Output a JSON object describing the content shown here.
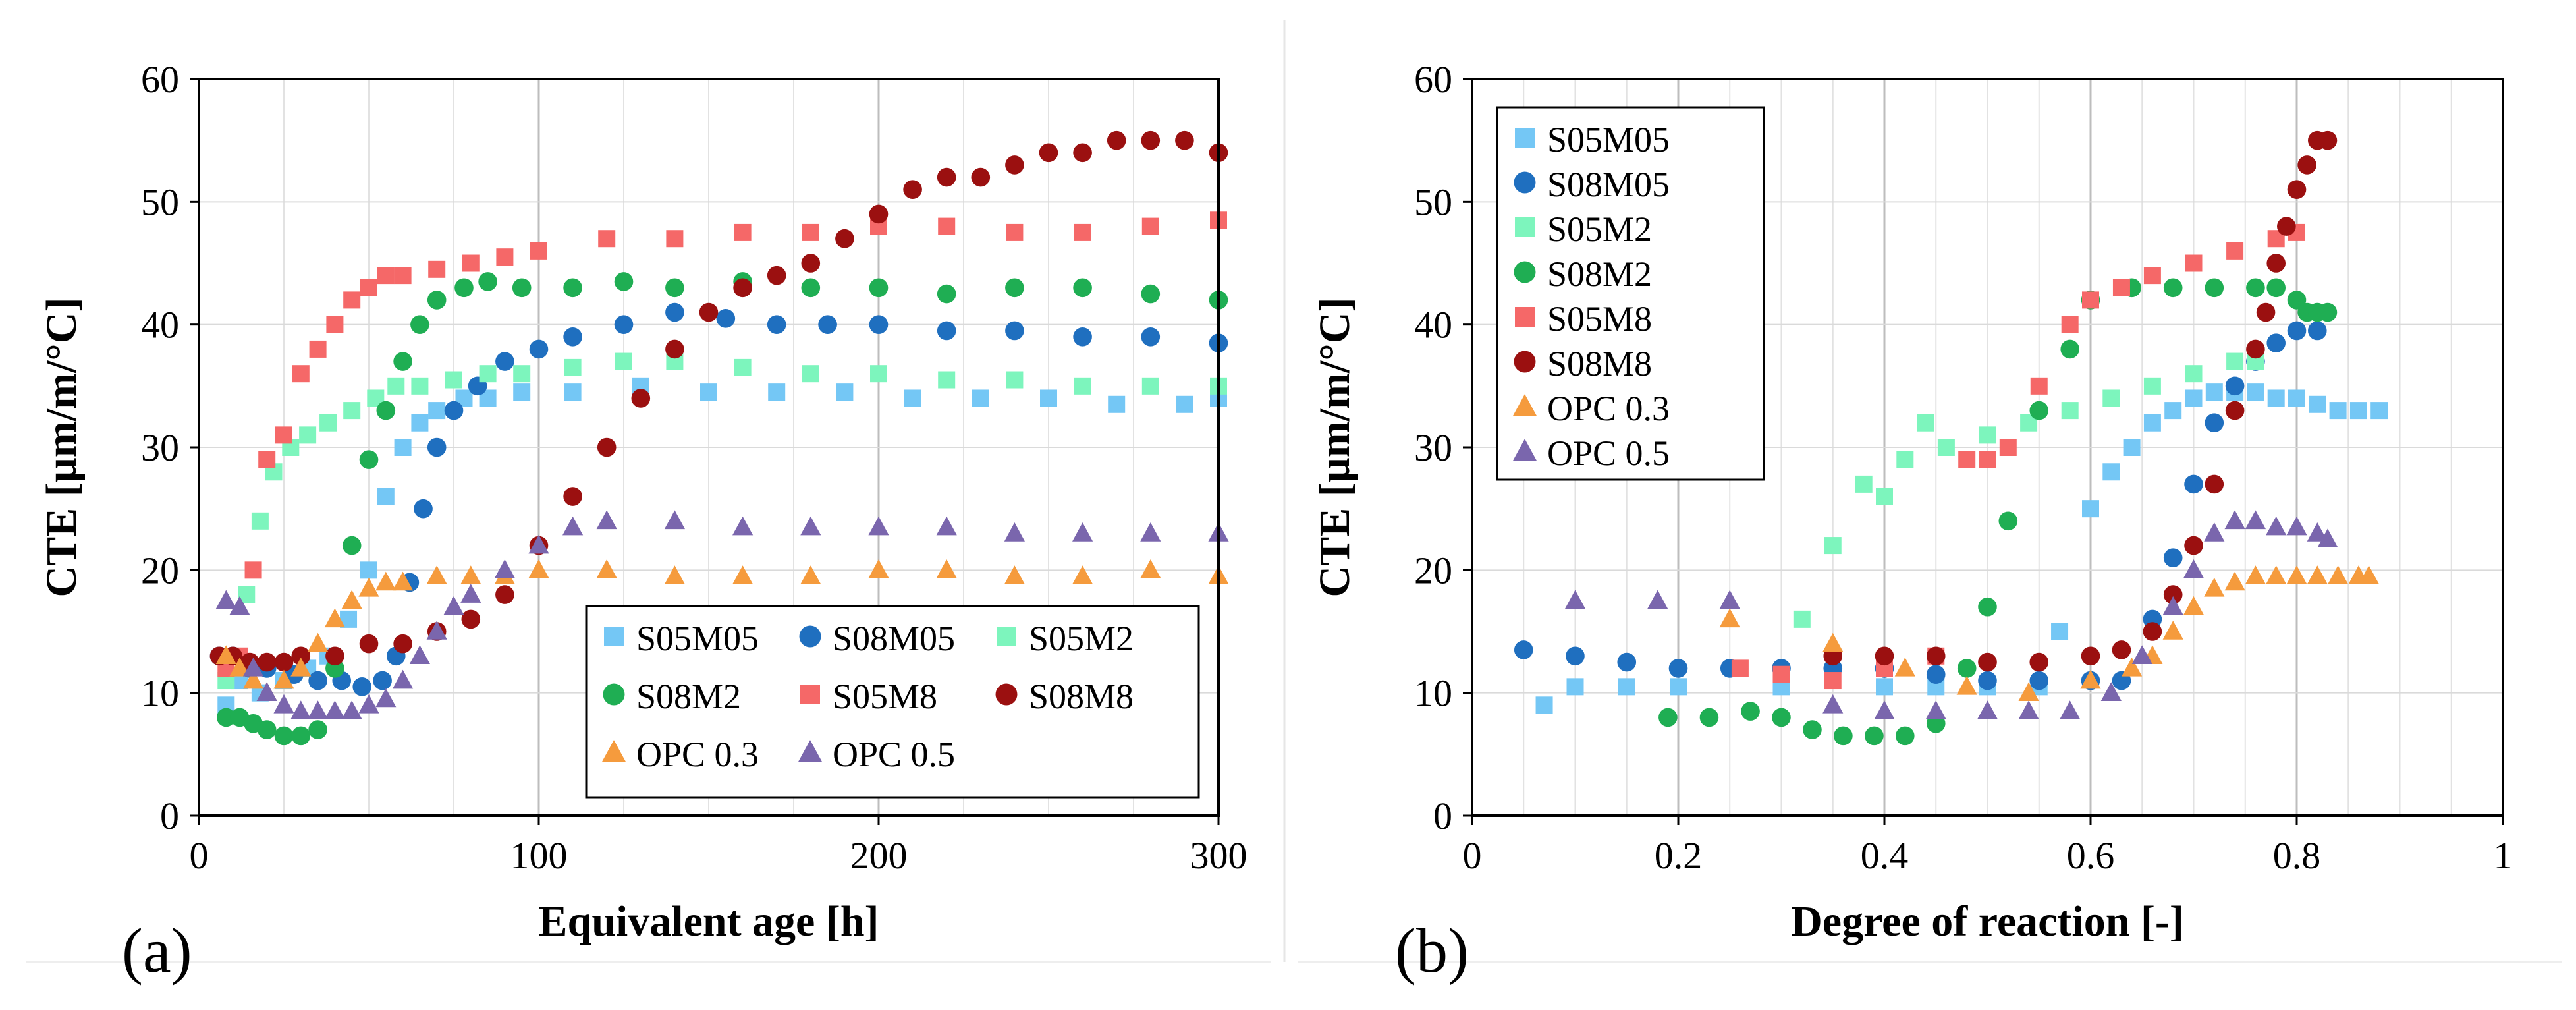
{
  "figure": {
    "panel_a_label": "(a)",
    "panel_b_label": "(b)"
  },
  "chart_data": [
    {
      "type": "scatter",
      "panel": "(a)",
      "title": "",
      "xlabel": "Equivalent age [h]",
      "ylabel": "CTE [µm/m/°C]",
      "xlim": [
        0,
        300
      ],
      "ylim": [
        0,
        60
      ],
      "xticks": [
        0,
        100,
        200,
        300
      ],
      "yticks": [
        0,
        10,
        20,
        30,
        40,
        50,
        60
      ],
      "xtick_labels": [
        "0",
        "100",
        "200",
        "300"
      ],
      "ytick_labels": [
        "0",
        "10",
        "20",
        "30",
        "40",
        "50",
        "60"
      ],
      "grid": true,
      "legend_position": "bottom-right",
      "series": [
        {
          "name": "S05M05",
          "color": "#74c7f5",
          "marker": "square",
          "x": [
            8,
            12,
            18,
            25,
            32,
            38,
            44,
            50,
            55,
            60,
            65,
            70,
            78,
            85,
            95,
            110,
            130,
            150,
            170,
            190,
            210,
            230,
            250,
            270,
            290,
            300
          ],
          "y": [
            9,
            11,
            10,
            11,
            12,
            13,
            16,
            20,
            26,
            30,
            32,
            33,
            34,
            34,
            34.5,
            34.5,
            35,
            34.5,
            34.5,
            34.5,
            34,
            34,
            34,
            33.5,
            33.5,
            34
          ]
        },
        {
          "name": "S08M05",
          "color": "#1f6fbf",
          "marker": "circle",
          "x": [
            6,
            10,
            15,
            20,
            28,
            35,
            42,
            48,
            54,
            58,
            62,
            66,
            70,
            75,
            82,
            90,
            100,
            110,
            125,
            140,
            155,
            170,
            185,
            200,
            220,
            240,
            260,
            280,
            300
          ],
          "y": [
            13,
            13,
            12,
            12,
            11.5,
            11,
            11,
            10.5,
            11,
            13,
            19,
            25,
            30,
            33,
            35,
            37,
            38,
            39,
            40,
            41,
            40.5,
            40,
            40,
            40,
            39.5,
            39.5,
            39,
            39,
            38.5
          ]
        },
        {
          "name": "S05M2",
          "color": "#7df5bd",
          "marker": "square",
          "x": [
            8,
            14,
            18,
            22,
            27,
            32,
            38,
            45,
            52,
            58,
            65,
            75,
            85,
            95,
            110,
            125,
            140,
            160,
            180,
            200,
            220,
            240,
            260,
            280,
            300
          ],
          "y": [
            11,
            18,
            24,
            28,
            30,
            31,
            32,
            33,
            34,
            35,
            35,
            35.5,
            36,
            36,
            36.5,
            37,
            37,
            36.5,
            36,
            36,
            35.5,
            35.5,
            35,
            35,
            35
          ]
        },
        {
          "name": "S08M2",
          "color": "#1fae53",
          "marker": "circle",
          "x": [
            8,
            12,
            16,
            20,
            25,
            30,
            35,
            40,
            45,
            50,
            55,
            60,
            65,
            70,
            78,
            85,
            95,
            110,
            125,
            140,
            160,
            180,
            200,
            220,
            240,
            260,
            280,
            300
          ],
          "y": [
            8,
            8,
            7.5,
            7,
            6.5,
            6.5,
            7,
            12,
            22,
            29,
            33,
            37,
            40,
            42,
            43,
            43.5,
            43,
            43,
            43.5,
            43,
            43.5,
            43,
            43,
            42.5,
            43,
            43,
            42.5,
            42
          ]
        },
        {
          "name": "S05M8",
          "color": "#f56868",
          "marker": "square",
          "x": [
            8,
            12,
            16,
            20,
            25,
            30,
            35,
            40,
            45,
            50,
            55,
            60,
            70,
            80,
            90,
            100,
            120,
            140,
            160,
            180,
            200,
            220,
            240,
            260,
            280,
            300
          ],
          "y": [
            12,
            13,
            20,
            29,
            31,
            36,
            38,
            40,
            42,
            43,
            44,
            44,
            44.5,
            45,
            45.5,
            46,
            47,
            47,
            47.5,
            47.5,
            48,
            48,
            47.5,
            47.5,
            48,
            48.5
          ]
        },
        {
          "name": "S08M8",
          "color": "#9b1010",
          "marker": "circle",
          "x": [
            6,
            10,
            15,
            20,
            25,
            30,
            40,
            50,
            60,
            70,
            80,
            90,
            100,
            110,
            120,
            130,
            140,
            150,
            160,
            170,
            180,
            190,
            200,
            210,
            220,
            230,
            240,
            250,
            260,
            270,
            280,
            290,
            300
          ],
          "y": [
            13,
            13,
            12.5,
            12.5,
            12.5,
            13,
            13,
            14,
            14,
            15,
            16,
            18,
            22,
            26,
            30,
            34,
            38,
            41,
            43,
            44,
            45,
            47,
            49,
            51,
            52,
            52,
            53,
            54,
            54,
            55,
            55,
            55,
            54
          ]
        },
        {
          "name": "OPC 0.3",
          "color": "#f59b3d",
          "marker": "triangle",
          "x": [
            8,
            12,
            16,
            20,
            25,
            30,
            35,
            40,
            45,
            50,
            55,
            60,
            70,
            80,
            90,
            100,
            120,
            140,
            160,
            180,
            200,
            220,
            240,
            260,
            280,
            300
          ],
          "y": [
            13,
            12,
            11,
            10,
            11,
            12,
            14,
            16,
            17.5,
            18.5,
            19,
            19,
            19.5,
            19.5,
            19.5,
            20,
            20,
            19.5,
            19.5,
            19.5,
            20,
            20,
            19.5,
            19.5,
            20,
            19.5
          ]
        },
        {
          "name": "OPC 0.5",
          "color": "#7a66ad",
          "marker": "triangle",
          "x": [
            8,
            12,
            16,
            20,
            25,
            30,
            35,
            40,
            45,
            50,
            55,
            60,
            65,
            70,
            75,
            80,
            90,
            100,
            110,
            120,
            140,
            160,
            180,
            200,
            220,
            240,
            260,
            280,
            300
          ],
          "y": [
            17.5,
            17,
            12,
            10,
            9,
            8.5,
            8.5,
            8.5,
            8.5,
            9,
            9.5,
            11,
            13,
            15,
            17,
            18,
            20,
            22,
            23.5,
            24,
            24,
            23.5,
            23.5,
            23.5,
            23.5,
            23,
            23,
            23,
            23
          ]
        }
      ]
    },
    {
      "type": "scatter",
      "panel": "(b)",
      "title": "",
      "xlabel": "Degree of reaction [-]",
      "ylabel": "CTE [µm/m/°C]",
      "xlim": [
        0,
        1
      ],
      "ylim": [
        0,
        60
      ],
      "xticks": [
        0,
        0.2,
        0.4,
        0.6,
        0.8,
        1
      ],
      "yticks": [
        0,
        10,
        20,
        30,
        40,
        50,
        60
      ],
      "xtick_labels": [
        "0",
        "0.2",
        "0.4",
        "0.6",
        "0.8",
        "1"
      ],
      "ytick_labels": [
        "0",
        "10",
        "20",
        "30",
        "40",
        "50",
        "60"
      ],
      "grid": true,
      "legend_position": "top-left",
      "series": [
        {
          "name": "S05M05",
          "color": "#74c7f5",
          "marker": "square",
          "x": [
            0.07,
            0.1,
            0.15,
            0.2,
            0.3,
            0.4,
            0.45,
            0.5,
            0.55,
            0.57,
            0.6,
            0.62,
            0.64,
            0.66,
            0.68,
            0.7,
            0.72,
            0.74,
            0.76,
            0.78,
            0.8,
            0.82,
            0.84,
            0.86,
            0.88
          ],
          "y": [
            9,
            10.5,
            10.5,
            10.5,
            10.5,
            10.5,
            10.5,
            10.5,
            10.5,
            15,
            25,
            28,
            30,
            32,
            33,
            34,
            34.5,
            34.5,
            34.5,
            34,
            34,
            33.5,
            33,
            33,
            33
          ]
        },
        {
          "name": "S08M05",
          "color": "#1f6fbf",
          "marker": "circle",
          "x": [
            0.05,
            0.1,
            0.15,
            0.2,
            0.25,
            0.3,
            0.35,
            0.4,
            0.45,
            0.5,
            0.55,
            0.6,
            0.63,
            0.66,
            0.68,
            0.7,
            0.72,
            0.74,
            0.76,
            0.78,
            0.8,
            0.82
          ],
          "y": [
            13.5,
            13,
            12.5,
            12,
            12,
            12,
            12,
            12,
            11.5,
            11,
            11,
            11,
            11,
            16,
            21,
            27,
            32,
            35,
            37,
            38.5,
            39.5,
            39.5
          ]
        },
        {
          "name": "S05M2",
          "color": "#7df5bd",
          "marker": "square",
          "x": [
            0.32,
            0.35,
            0.38,
            0.4,
            0.42,
            0.44,
            0.46,
            0.5,
            0.54,
            0.58,
            0.62,
            0.66,
            0.7,
            0.74,
            0.76
          ],
          "y": [
            16,
            22,
            27,
            26,
            29,
            32,
            30,
            31,
            32,
            33,
            34,
            35,
            36,
            37,
            37
          ]
        },
        {
          "name": "S08M2",
          "color": "#1fae53",
          "marker": "circle",
          "x": [
            0.19,
            0.23,
            0.27,
            0.3,
            0.33,
            0.36,
            0.39,
            0.42,
            0.45,
            0.48,
            0.5,
            0.52,
            0.55,
            0.58,
            0.6,
            0.64,
            0.68,
            0.72,
            0.76,
            0.78,
            0.8,
            0.81,
            0.82,
            0.83
          ],
          "y": [
            8,
            8,
            8.5,
            8,
            7,
            6.5,
            6.5,
            6.5,
            7.5,
            12,
            17,
            24,
            33,
            38,
            42,
            43,
            43,
            43,
            43,
            43,
            42,
            41,
            41,
            41
          ]
        },
        {
          "name": "S05M8",
          "color": "#f56868",
          "marker": "square",
          "x": [
            0.26,
            0.3,
            0.35,
            0.4,
            0.45,
            0.48,
            0.5,
            0.52,
            0.55,
            0.58,
            0.6,
            0.63,
            0.66,
            0.7,
            0.74,
            0.78,
            0.8
          ],
          "y": [
            12,
            11.5,
            11,
            12,
            13,
            29,
            29,
            30,
            35,
            40,
            42,
            43,
            44,
            45,
            46,
            47,
            47.5
          ]
        },
        {
          "name": "S08M8",
          "color": "#9b1010",
          "marker": "circle",
          "x": [
            0.35,
            0.4,
            0.45,
            0.5,
            0.55,
            0.6,
            0.63,
            0.66,
            0.68,
            0.7,
            0.72,
            0.74,
            0.76,
            0.77,
            0.78,
            0.79,
            0.8,
            0.81,
            0.82,
            0.83
          ],
          "y": [
            13,
            13,
            13,
            12.5,
            12.5,
            13,
            13.5,
            15,
            18,
            22,
            27,
            33,
            38,
            41,
            45,
            48,
            51,
            53,
            55,
            55
          ]
        },
        {
          "name": "OPC 0.3",
          "color": "#f59b3d",
          "marker": "triangle",
          "x": [
            0.25,
            0.35,
            0.42,
            0.48,
            0.54,
            0.6,
            0.64,
            0.66,
            0.68,
            0.7,
            0.72,
            0.74,
            0.76,
            0.78,
            0.8,
            0.82,
            0.84,
            0.86,
            0.87
          ],
          "y": [
            16,
            14,
            12,
            10.5,
            10,
            11,
            12,
            13,
            15,
            17,
            18.5,
            19,
            19.5,
            19.5,
            19.5,
            19.5,
            19.5,
            19.5,
            19.5
          ]
        },
        {
          "name": "OPC 0.5",
          "color": "#7a66ad",
          "marker": "triangle",
          "x": [
            0.1,
            0.18,
            0.25,
            0.35,
            0.4,
            0.45,
            0.5,
            0.54,
            0.58,
            0.62,
            0.65,
            0.68,
            0.7,
            0.72,
            0.74,
            0.76,
            0.78,
            0.8,
            0.82,
            0.83
          ],
          "y": [
            17.5,
            17.5,
            17.5,
            9,
            8.5,
            8.5,
            8.5,
            8.5,
            8.5,
            10,
            13,
            17,
            20,
            23,
            24,
            24,
            23.5,
            23.5,
            23,
            22.5
          ]
        }
      ]
    }
  ]
}
